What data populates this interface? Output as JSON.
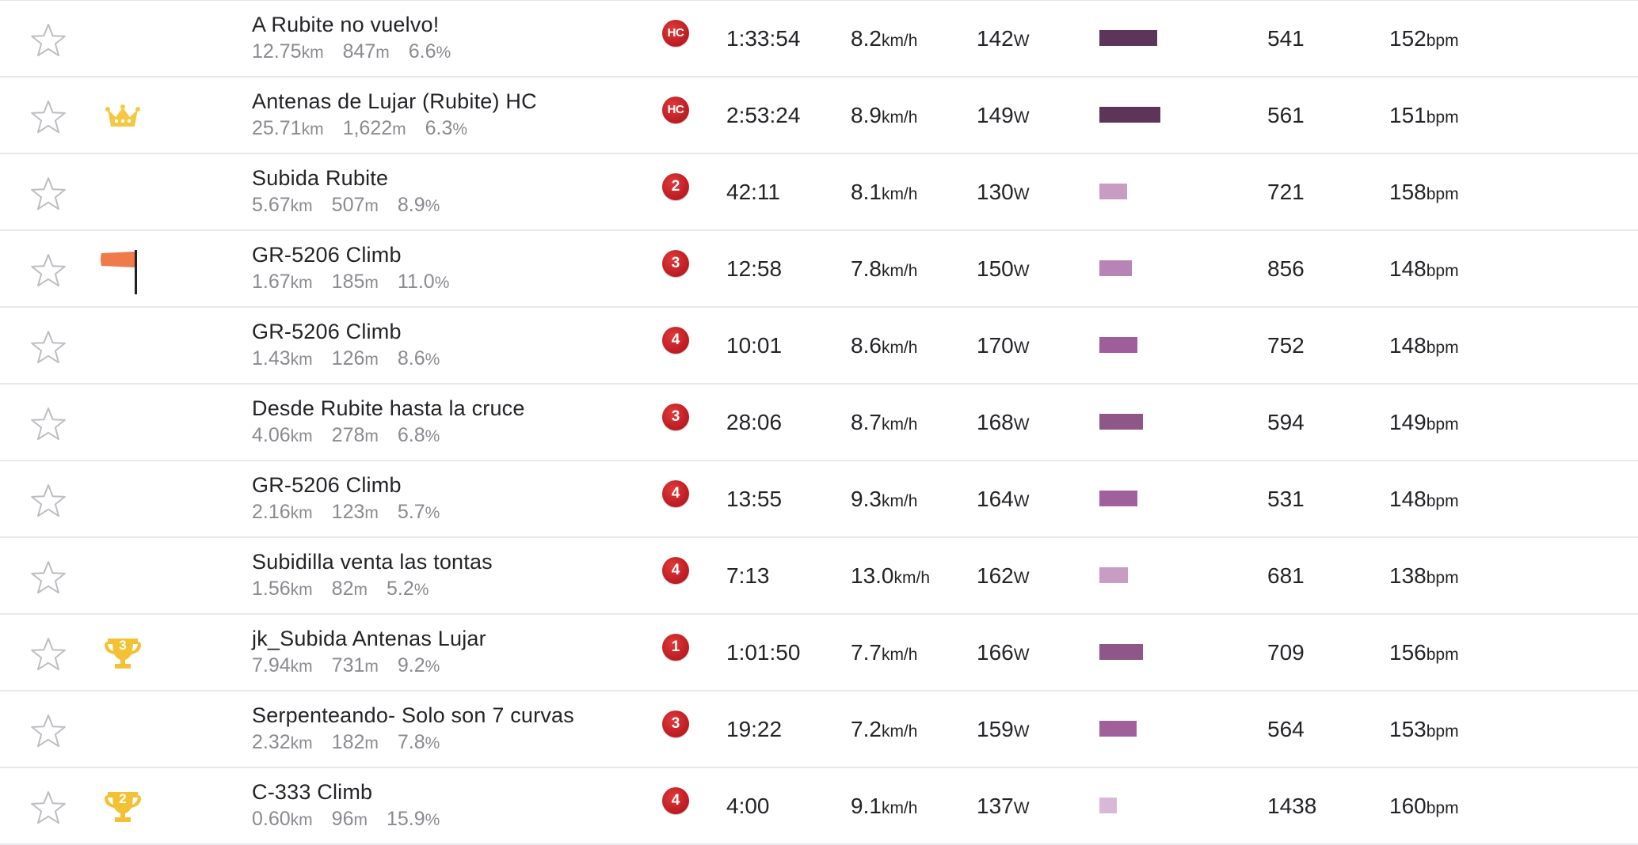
{
  "units": {
    "distance": "km",
    "elevation": "m",
    "grade": "%",
    "speed": "km/h",
    "power": "W",
    "heart_rate": "bpm"
  },
  "colors": {
    "star_outline": "#bdbdc2",
    "category_red": "#c01f25",
    "crown_gold": "#f4c842",
    "trophy_gold": "#f2c234",
    "flag_orange": "#ef7a4a",
    "divider": "#e8e8ec"
  },
  "efforts": [
    {
      "starred": false,
      "achievement": "none",
      "name": "A Rubite no vuelvo!",
      "distance": "12.75",
      "elevation": "847",
      "grade": "6.6",
      "category": "HC",
      "time": "1:33:54",
      "speed": "8.2",
      "power": "142",
      "bar_value": 0.61,
      "bar_color": "#5c3558",
      "vam": "541",
      "heart_rate": "152"
    },
    {
      "starred": false,
      "achievement": "crown",
      "achievement_icon": "crown-icon",
      "name": "Antenas de Lujar (Rubite) HC",
      "distance": "25.71",
      "elevation": "1,622",
      "grade": "6.3",
      "category": "HC",
      "time": "2:53:24",
      "speed": "8.9",
      "power": "149",
      "bar_value": 0.64,
      "bar_color": "#5c3558",
      "vam": "561",
      "heart_rate": "151"
    },
    {
      "starred": false,
      "achievement": "none",
      "name": "Subida Rubite",
      "distance": "5.67",
      "elevation": "507",
      "grade": "8.9",
      "category": "2",
      "time": "42:11",
      "speed": "8.1",
      "power": "130",
      "bar_value": 0.29,
      "bar_color": "#c79dc4",
      "vam": "721",
      "heart_rate": "158"
    },
    {
      "starred": false,
      "achievement": "flag",
      "achievement_icon": "flag-icon",
      "name": "GR-5206 Climb",
      "distance": "1.67",
      "elevation": "185",
      "grade": "11.0",
      "category": "3",
      "time": "12:58",
      "speed": "7.8",
      "power": "150",
      "bar_value": 0.34,
      "bar_color": "#b784b5",
      "vam": "856",
      "heart_rate": "148"
    },
    {
      "starred": false,
      "achievement": "none",
      "name": "GR-5206 Climb",
      "distance": "1.43",
      "elevation": "126",
      "grade": "8.6",
      "category": "4",
      "time": "10:01",
      "speed": "8.6",
      "power": "170",
      "bar_value": 0.4,
      "bar_color": "#9d5e99",
      "vam": "752",
      "heart_rate": "148"
    },
    {
      "starred": false,
      "achievement": "none",
      "name": "Desde Rubite hasta la cruce",
      "distance": "4.06",
      "elevation": "278",
      "grade": "6.8",
      "category": "3",
      "time": "28:06",
      "speed": "8.7",
      "power": "168",
      "bar_value": 0.46,
      "bar_color": "#8e5788",
      "vam": "594",
      "heart_rate": "149"
    },
    {
      "starred": false,
      "achievement": "none",
      "name": "GR-5206 Climb",
      "distance": "2.16",
      "elevation": "123",
      "grade": "5.7",
      "category": "4",
      "time": "13:55",
      "speed": "9.3",
      "power": "164",
      "bar_value": 0.4,
      "bar_color": "#a0609c",
      "vam": "531",
      "heart_rate": "148"
    },
    {
      "starred": false,
      "achievement": "none",
      "name": "Subidilla venta las tontas",
      "distance": "1.56",
      "elevation": "82",
      "grade": "5.2",
      "category": "4",
      "time": "7:13",
      "speed": "13.0",
      "power": "162",
      "bar_value": 0.3,
      "bar_color": "#c79dc4",
      "vam": "681",
      "heart_rate": "138"
    },
    {
      "starred": false,
      "achievement": "trophy",
      "achievement_icon": "trophy-icon",
      "achievement_rank": "3",
      "name": "jk_Subida Antenas Lujar",
      "distance": "7.94",
      "elevation": "731",
      "grade": "9.2",
      "category": "1",
      "time": "1:01:50",
      "speed": "7.7",
      "power": "166",
      "bar_value": 0.46,
      "bar_color": "#8e5788",
      "vam": "709",
      "heart_rate": "156"
    },
    {
      "starred": false,
      "achievement": "none",
      "name": "Serpenteando- Solo son 7 curvas",
      "distance": "2.32",
      "elevation": "182",
      "grade": "7.8",
      "category": "3",
      "time": "19:22",
      "speed": "7.2",
      "power": "159",
      "bar_value": 0.39,
      "bar_color": "#a0609c",
      "vam": "564",
      "heart_rate": "153"
    },
    {
      "starred": false,
      "achievement": "trophy",
      "achievement_icon": "trophy-icon",
      "achievement_rank": "2",
      "name": "C-333 Climb",
      "distance": "0.60",
      "elevation": "96",
      "grade": "15.9",
      "category": "4",
      "time": "4:00",
      "speed": "9.1",
      "power": "137",
      "bar_value": 0.18,
      "bar_color": "#d8b8d6",
      "vam": "1438",
      "heart_rate": "160"
    }
  ]
}
